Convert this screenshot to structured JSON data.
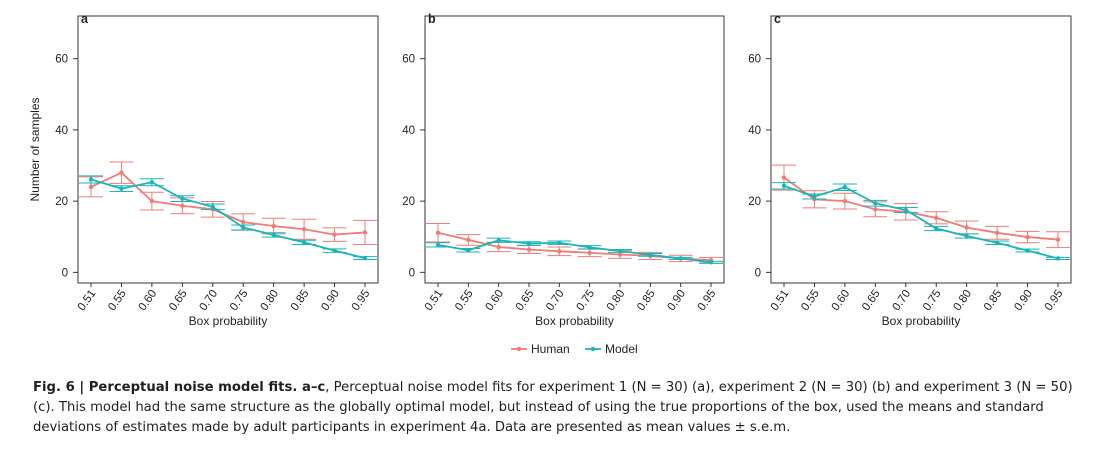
{
  "caption": {
    "lead": "Fig. 6 | Perceptual noise model fits. a–c",
    "text": ", Perceptual noise model fits for experiment 1 (N = 30) (a), experiment 2 (N = 30) (b) and experiment 3 (N = 50) (c). This model had the same structure as the globally optimal model, but instead of using the true proportions of the box, used the means and standard deviations of estimates made by adult participants in experiment 4a. Data are presented as mean values ± s.e.m."
  },
  "legend": {
    "position": "bottom-center",
    "items": [
      {
        "name": "Human",
        "color": "#ef7c76"
      },
      {
        "name": "Model",
        "color": "#1ab5b8"
      }
    ]
  },
  "chart_data": [
    {
      "type": "line",
      "panel_label": "a",
      "xlabel": "Box probability",
      "ylabel": "Number of samples",
      "categories": [
        "0.51",
        "0.55",
        "0.60",
        "0.65",
        "0.70",
        "0.75",
        "0.80",
        "0.85",
        "0.90",
        "0.95"
      ],
      "ylim": [
        -3,
        72
      ],
      "yticks": [
        0,
        20,
        40,
        60
      ],
      "grid": false,
      "series": [
        {
          "name": "Human",
          "color": "#ef7c76",
          "values": [
            24.0,
            28.0,
            20.0,
            18.7,
            17.7,
            14.1,
            13.0,
            12.1,
            10.6,
            11.2
          ],
          "err": [
            2.8,
            3.0,
            2.5,
            2.2,
            2.2,
            2.3,
            2.2,
            2.8,
            1.9,
            3.4
          ]
        },
        {
          "name": "Model",
          "color": "#1ab5b8",
          "values": [
            26.1,
            23.5,
            25.3,
            20.7,
            18.4,
            12.6,
            10.5,
            8.4,
            6.1,
            4.0
          ],
          "err": [
            1.0,
            0.8,
            1.0,
            0.8,
            0.8,
            0.7,
            0.6,
            0.6,
            0.5,
            0.4
          ]
        }
      ]
    },
    {
      "type": "line",
      "panel_label": "b",
      "xlabel": "Box probability",
      "ylabel": "",
      "categories": [
        "0.51",
        "0.55",
        "0.60",
        "0.65",
        "0.70",
        "0.75",
        "0.80",
        "0.85",
        "0.90",
        "0.95"
      ],
      "ylim": [
        -3,
        72
      ],
      "yticks": [
        0,
        20,
        40,
        60
      ],
      "grid": false,
      "series": [
        {
          "name": "Human",
          "color": "#ef7c76",
          "values": [
            11.1,
            9.1,
            7.1,
            6.4,
            5.9,
            5.5,
            5.0,
            4.6,
            3.9,
            3.4
          ],
          "err": [
            2.6,
            1.5,
            1.3,
            1.1,
            1.2,
            1.1,
            1.1,
            1.0,
            0.9,
            0.8
          ]
        },
        {
          "name": "Model",
          "color": "#1ab5b8",
          "values": [
            7.7,
            6.2,
            9.0,
            8.1,
            8.3,
            7.0,
            6.0,
            4.9,
            3.9,
            2.8
          ],
          "err": [
            0.6,
            0.5,
            0.6,
            0.5,
            0.5,
            0.5,
            0.4,
            0.4,
            0.3,
            0.3
          ]
        }
      ]
    },
    {
      "type": "line",
      "panel_label": "c",
      "xlabel": "Box probability",
      "ylabel": "",
      "categories": [
        "0.51",
        "0.55",
        "0.60",
        "0.65",
        "0.70",
        "0.75",
        "0.80",
        "0.85",
        "0.90",
        "0.95"
      ],
      "ylim": [
        -3,
        72
      ],
      "yticks": [
        0,
        20,
        40,
        60
      ],
      "grid": false,
      "series": [
        {
          "name": "Human",
          "color": "#ef7c76",
          "values": [
            26.6,
            20.5,
            20.0,
            17.7,
            17.0,
            15.3,
            12.6,
            11.1,
            9.9,
            9.2
          ],
          "err": [
            3.5,
            2.4,
            2.2,
            2.1,
            2.3,
            1.7,
            1.8,
            1.8,
            1.6,
            2.2
          ]
        },
        {
          "name": "Model",
          "color": "#1ab5b8",
          "values": [
            24.3,
            21.3,
            23.9,
            19.4,
            17.5,
            12.3,
            10.2,
            8.3,
            6.1,
            3.9
          ],
          "err": [
            0.9,
            0.7,
            0.9,
            0.8,
            0.7,
            0.6,
            0.6,
            0.5,
            0.4,
            0.3
          ]
        }
      ]
    }
  ]
}
